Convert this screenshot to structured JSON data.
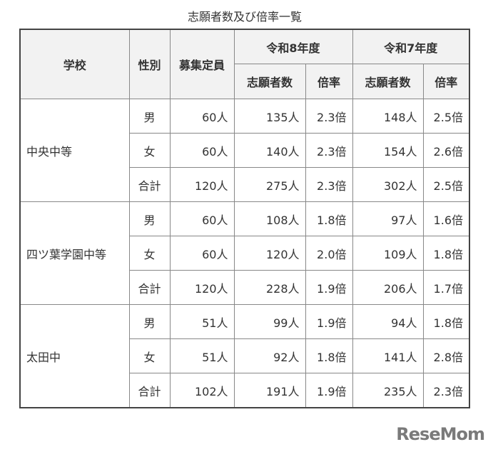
{
  "title": "志願者数及び倍率一覧",
  "header": {
    "school": "学校",
    "gender": "性別",
    "capacity": "募集定員",
    "year1": "令和8年度",
    "year2": "令和7年度",
    "applicants1": "志願者数",
    "ratio1": "倍率",
    "applicants2": "志願者数",
    "ratio2": "倍率"
  },
  "schools": [
    {
      "name": "中央中等",
      "rows": [
        [
          "男",
          "60人",
          "135人",
          "2.3倍",
          "148人",
          "2.5倍"
        ],
        [
          "女",
          "60人",
          "140人",
          "2.3倍",
          "154人",
          "2.6倍"
        ],
        [
          "合計",
          "120人",
          "275人",
          "2.3倍",
          "302人",
          "2.5倍"
        ]
      ]
    },
    {
      "name": "四ツ葉学園中等",
      "rows": [
        [
          "男",
          "60人",
          "108人",
          "1.8倍",
          "97人",
          "1.6倍"
        ],
        [
          "女",
          "60人",
          "120人",
          "2.0倍",
          "109人",
          "1.8倍"
        ],
        [
          "合計",
          "120人",
          "228人",
          "1.9倍",
          "206人",
          "1.7倍"
        ]
      ]
    },
    {
      "name": "太田中",
      "rows": [
        [
          "男",
          "51人",
          "99人",
          "1.9倍",
          "94人",
          "1.8倍"
        ],
        [
          "女",
          "51人",
          "92人",
          "1.8倍",
          "141人",
          "2.8倍"
        ],
        [
          "合計",
          "102人",
          "191人",
          "1.9倍",
          "235人",
          "2.3倍"
        ]
      ]
    }
  ],
  "logo": "ReseMom"
}
